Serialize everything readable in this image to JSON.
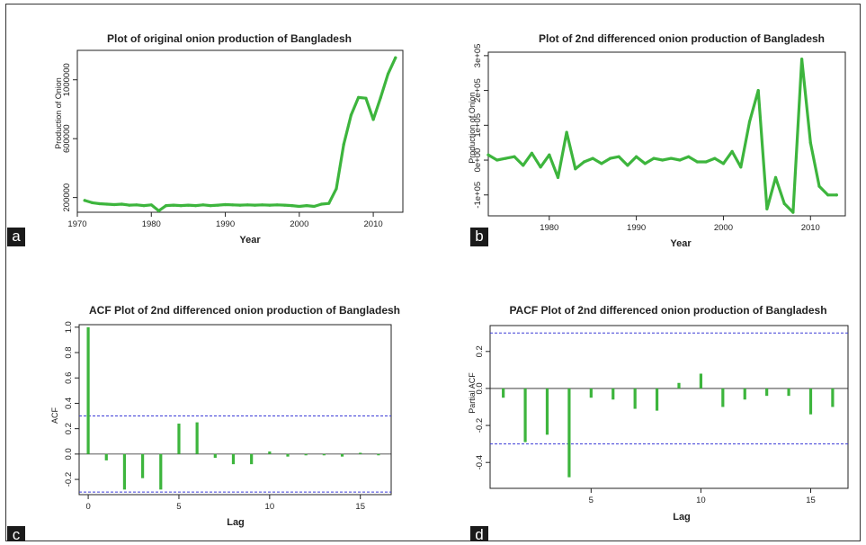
{
  "chart_data": [
    {
      "type": "line",
      "panel": "a",
      "title": "Plot of original onion production of Bangladesh",
      "xlabel": "Year",
      "ylabel": "Production of Onion",
      "xlim": [
        1970,
        2014
      ],
      "ylim": [
        100000,
        1200000
      ],
      "xticks": [
        1970,
        1980,
        1990,
        2000,
        2010
      ],
      "yticks": [
        200000,
        600000,
        1000000
      ],
      "color": "#3db53d",
      "x": [
        1971,
        1972,
        1973,
        1974,
        1975,
        1976,
        1977,
        1978,
        1979,
        1980,
        1981,
        1982,
        1983,
        1984,
        1985,
        1986,
        1987,
        1988,
        1989,
        1990,
        1991,
        1992,
        1993,
        1994,
        1995,
        1996,
        1997,
        1998,
        1999,
        2000,
        2001,
        2002,
        2003,
        2004,
        2005,
        2006,
        2007,
        2008,
        2009,
        2010,
        2011,
        2012,
        2013
      ],
      "y": [
        180000,
        165000,
        158000,
        155000,
        152000,
        155000,
        148000,
        150000,
        145000,
        150000,
        110000,
        145000,
        148000,
        145000,
        148000,
        145000,
        150000,
        145000,
        148000,
        152000,
        150000,
        148000,
        150000,
        148000,
        150000,
        148000,
        150000,
        148000,
        145000,
        140000,
        145000,
        140000,
        155000,
        160000,
        260000,
        560000,
        760000,
        880000,
        875000,
        730000,
        880000,
        1040000,
        1150000
      ]
    },
    {
      "type": "line",
      "panel": "b",
      "title": "Plot of 2nd differenced onion production of Bangladesh",
      "xlabel": "Year",
      "ylabel": "Production of Onion",
      "xlim": [
        1973,
        2014
      ],
      "ylim": [
        -160000,
        310000
      ],
      "xticks": [
        1980,
        1990,
        2000,
        2010
      ],
      "yticks": [
        -100000,
        0,
        100000,
        200000,
        300000
      ],
      "ytick_labels": [
        "-1e+05",
        "0e+00",
        "1e+05",
        "2e+05",
        "3e+05"
      ],
      "color": "#3db53d",
      "x": [
        1973,
        1974,
        1975,
        1976,
        1977,
        1978,
        1979,
        1980,
        1981,
        1982,
        1983,
        1984,
        1985,
        1986,
        1987,
        1988,
        1989,
        1990,
        1991,
        1992,
        1993,
        1994,
        1995,
        1996,
        1997,
        1998,
        1999,
        2000,
        2001,
        2002,
        2003,
        2004,
        2005,
        2006,
        2007,
        2008,
        2009,
        2010,
        2011,
        2012,
        2013
      ],
      "y": [
        15000,
        0,
        5000,
        10000,
        -15000,
        20000,
        -20000,
        15000,
        -50000,
        80000,
        -25000,
        -5000,
        5000,
        -10000,
        5000,
        10000,
        -15000,
        10000,
        -10000,
        5000,
        0,
        5000,
        0,
        10000,
        -5000,
        -5000,
        5000,
        -10000,
        25000,
        -20000,
        110000,
        200000,
        -140000,
        -50000,
        -125000,
        -150000,
        290000,
        50000,
        -75000,
        -100000,
        -100000
      ]
    },
    {
      "type": "bar",
      "panel": "c",
      "title": "ACF Plot of 2nd differenced onion production of Bangladesh",
      "xlabel": "Lag",
      "ylabel": "ACF",
      "xlim": [
        -0.5,
        16.7
      ],
      "ylim": [
        -0.32,
        1.02
      ],
      "xticks": [
        0,
        5,
        10,
        15
      ],
      "yticks": [
        -0.2,
        0.0,
        0.2,
        0.4,
        0.6,
        0.8,
        1.0
      ],
      "ytick_labels": [
        "-0.2",
        "0.0",
        "0.2",
        "0.4",
        "0.6",
        "0.8",
        "1.0"
      ],
      "confidence_bounds": [
        -0.3,
        0.3
      ],
      "color": "#3db53d",
      "x": [
        0,
        1,
        2,
        3,
        4,
        5,
        6,
        7,
        8,
        9,
        10,
        11,
        12,
        13,
        14,
        15,
        16
      ],
      "values": [
        1.0,
        -0.05,
        -0.28,
        -0.19,
        -0.28,
        0.24,
        0.25,
        -0.03,
        -0.08,
        -0.08,
        0.02,
        -0.02,
        -0.01,
        -0.01,
        -0.02,
        0.01,
        -0.01
      ]
    },
    {
      "type": "bar",
      "panel": "d",
      "title": "PACF Plot of 2nd differenced onion production of Bangladesh",
      "xlabel": "Lag",
      "ylabel": "Partial ACF",
      "xlim": [
        0.4,
        16.7
      ],
      "ylim": [
        -0.54,
        0.34
      ],
      "xticks": [
        5,
        10,
        15
      ],
      "yticks": [
        -0.4,
        -0.2,
        0.0,
        0.2
      ],
      "ytick_labels": [
        "-0.4",
        "-0.2",
        "0.0",
        "0.2"
      ],
      "confidence_bounds": [
        -0.3,
        0.3
      ],
      "color": "#3db53d",
      "x": [
        1,
        2,
        3,
        4,
        5,
        6,
        7,
        8,
        9,
        10,
        11,
        12,
        13,
        14,
        15,
        16
      ],
      "values": [
        -0.05,
        -0.29,
        -0.25,
        -0.48,
        -0.05,
        -0.06,
        -0.11,
        -0.12,
        0.03,
        0.08,
        -0.1,
        -0.06,
        -0.04,
        -0.04,
        -0.14,
        -0.1
      ]
    }
  ],
  "panel_tags": [
    "a",
    "b",
    "c",
    "d"
  ]
}
